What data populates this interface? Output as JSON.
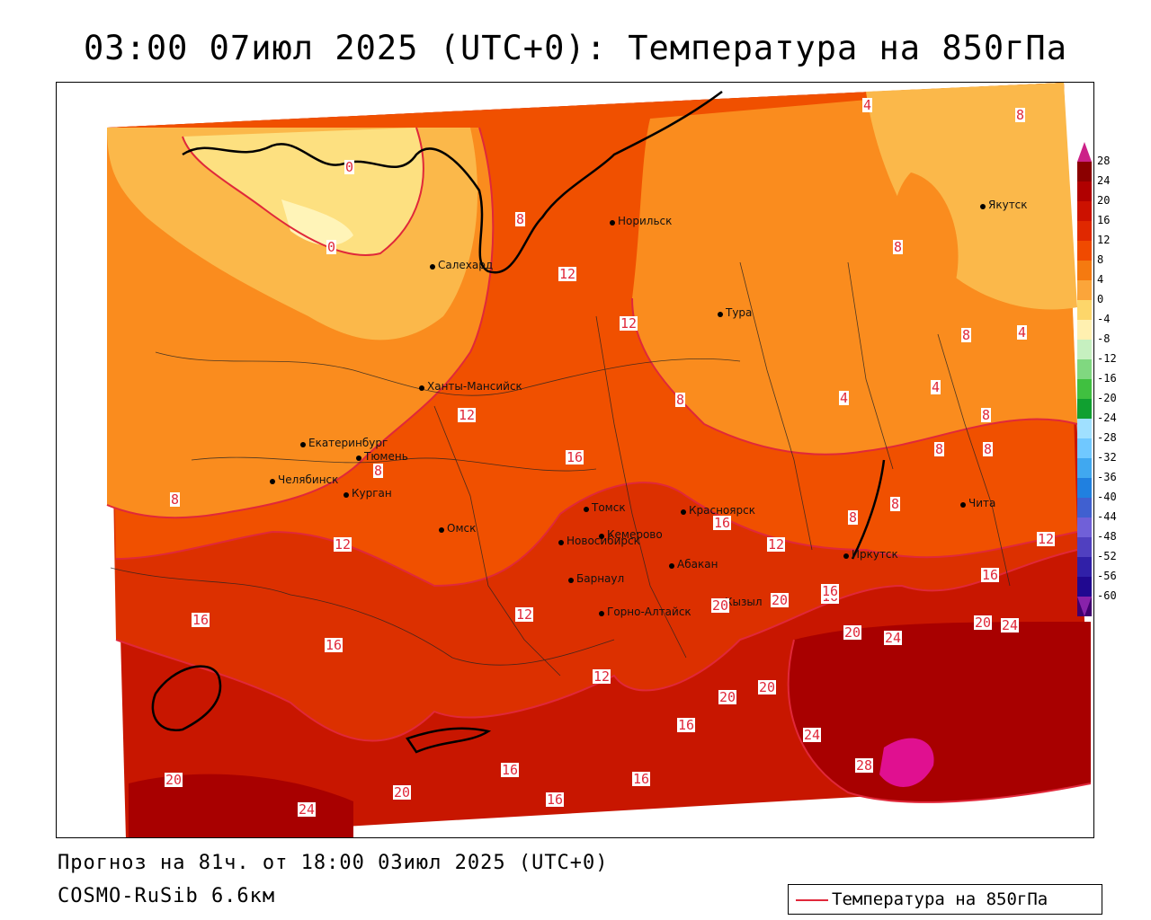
{
  "title": "03:00 07июл 2025 (UTC+0): Температура на 850гПа",
  "footer": {
    "forecast": "Прогноз на 81ч. от 18:00 03июл 2025 (UTC+0)",
    "model": "COSMO-RuSib 6.6км"
  },
  "legend": {
    "label": "Температура на 850гПа",
    "line_color": "#e0283a"
  },
  "colors": {
    "c28": "#e01090",
    "c24": "#a80000",
    "c20": "#c81600",
    "c16": "#dc3000",
    "c12": "#f05000",
    "c8": "#fa8c1e",
    "c4": "#fbb84a",
    "c0": "#fde080",
    "cneg": "#fff4b8",
    "ocean": "#ffffff"
  },
  "color_scale": {
    "labels": [
      "28",
      "24",
      "20",
      "16",
      "12",
      "8",
      "4",
      "0",
      "-4",
      "-8",
      "-12",
      "-16",
      "-20",
      "-24",
      "-28",
      "-32",
      "-36",
      "-40",
      "-44",
      "-48",
      "-52",
      "-56",
      "-60"
    ],
    "colors": [
      "#8b0000",
      "#b00000",
      "#cc1100",
      "#e02800",
      "#f04a00",
      "#f57a10",
      "#fba53a",
      "#fdd66a",
      "#fff0b0",
      "#c6f0c0",
      "#80d880",
      "#40c040",
      "#10a030",
      "#a0e0ff",
      "#70c8ff",
      "#40a8f0",
      "#2080e0",
      "#4060d0",
      "#7060d8",
      "#5040c0",
      "#3020a8",
      "#200890",
      "#400070"
    ]
  },
  "cities": [
    {
      "name": "Норильск"
    },
    {
      "name": "Салехард"
    },
    {
      "name": "Тура"
    },
    {
      "name": "Якутск"
    },
    {
      "name": "Ханты-Мансийск"
    },
    {
      "name": "Екатеринбург"
    },
    {
      "name": "Тюмень"
    },
    {
      "name": "Челябинск"
    },
    {
      "name": "Курган"
    },
    {
      "name": "Омск"
    },
    {
      "name": "Новосибирск"
    },
    {
      "name": "Томск"
    },
    {
      "name": "Кемерово"
    },
    {
      "name": "Красноярск"
    },
    {
      "name": "Абакан"
    },
    {
      "name": "Барнаул"
    },
    {
      "name": "Горно-Алтайск"
    },
    {
      "name": "Кызыл"
    },
    {
      "name": "Иркутск"
    },
    {
      "name": "Чита"
    }
  ],
  "isolines": [
    "0",
    "0",
    "8",
    "12",
    "12",
    "12",
    "16",
    "8",
    "8",
    "8",
    "4",
    "8",
    "8",
    "4",
    "4",
    "4",
    "8",
    "8",
    "8",
    "8",
    "8",
    "12",
    "12",
    "16",
    "16",
    "12",
    "16",
    "12",
    "16",
    "20",
    "20",
    "24",
    "16",
    "20",
    "20",
    "16",
    "20",
    "20",
    "24",
    "12",
    "16",
    "20",
    "16",
    "20",
    "24",
    "28",
    "16",
    "16",
    "24",
    "8"
  ]
}
